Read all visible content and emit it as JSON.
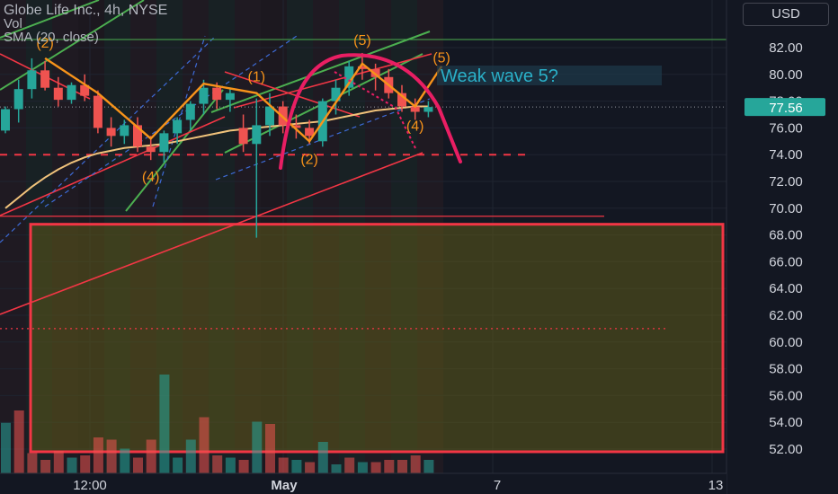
{
  "header": {
    "title": "Globe Life Inc., 4h, NYSE",
    "vol_label": "Vol",
    "sma_label": "SMA (20, close)"
  },
  "currency_button": "USD",
  "colors": {
    "background": "#131722",
    "up": "#26a69a",
    "down": "#ef5350",
    "wave_line": "#f7931a",
    "wave_label": "#f7931a",
    "sma": "#f0c27b",
    "channel_green": "#4caf50",
    "channel_red": "#f23645",
    "projection": "#e91e63",
    "box_fill": "#5d5a1a",
    "last_price_bg": "#26a69a"
  },
  "chart_data": {
    "type": "candlestick",
    "symbol": "Globe Life Inc.",
    "interval": "4h",
    "exchange": "NYSE",
    "y_axis": {
      "ticks": [
        "82.00",
        "80.00",
        "78.00",
        "76.00",
        "74.00",
        "72.00",
        "70.00",
        "68.00",
        "66.00",
        "64.00",
        "62.00",
        "60.00",
        "58.00",
        "56.00",
        "54.00",
        "52.00"
      ],
      "ylim": [
        50.7,
        83.6
      ]
    },
    "x_axis": {
      "ticks": [
        "12:00",
        "May",
        "7",
        "13"
      ]
    },
    "last_price": "77.56",
    "candles": [
      {
        "o": 75.8,
        "h": 77.6,
        "l": 75.6,
        "c": 77.4
      },
      {
        "o": 77.4,
        "h": 79.6,
        "l": 76.4,
        "c": 78.9
      },
      {
        "o": 78.9,
        "h": 81.2,
        "l": 78.2,
        "c": 80.3
      },
      {
        "o": 80.3,
        "h": 81.0,
        "l": 78.8,
        "c": 79.0
      },
      {
        "o": 79.0,
        "h": 79.8,
        "l": 77.6,
        "c": 78.1
      },
      {
        "o": 78.1,
        "h": 79.4,
        "l": 77.8,
        "c": 79.2
      },
      {
        "o": 79.2,
        "h": 80.0,
        "l": 78.0,
        "c": 78.4
      },
      {
        "o": 78.4,
        "h": 78.8,
        "l": 75.6,
        "c": 76.0
      },
      {
        "o": 76.0,
        "h": 76.8,
        "l": 74.6,
        "c": 75.4
      },
      {
        "o": 75.4,
        "h": 76.6,
        "l": 74.8,
        "c": 76.2
      },
      {
        "o": 76.2,
        "h": 76.8,
        "l": 74.2,
        "c": 74.6
      },
      {
        "o": 74.6,
        "h": 75.4,
        "l": 73.6,
        "c": 74.2
      },
      {
        "o": 74.2,
        "h": 75.8,
        "l": 73.4,
        "c": 75.6
      },
      {
        "o": 75.6,
        "h": 76.8,
        "l": 74.8,
        "c": 76.6
      },
      {
        "o": 76.6,
        "h": 78.0,
        "l": 75.8,
        "c": 77.8
      },
      {
        "o": 77.8,
        "h": 79.6,
        "l": 77.0,
        "c": 79.0
      },
      {
        "o": 79.0,
        "h": 79.4,
        "l": 77.4,
        "c": 78.1
      },
      {
        "o": 78.1,
        "h": 79.0,
        "l": 77.2,
        "c": 78.6
      },
      {
        "o": 76.0,
        "h": 77.0,
        "l": 74.2,
        "c": 74.8
      },
      {
        "o": 74.8,
        "h": 78.2,
        "l": 67.8,
        "c": 76.2
      },
      {
        "o": 76.2,
        "h": 78.6,
        "l": 75.4,
        "c": 77.6
      },
      {
        "o": 77.6,
        "h": 78.0,
        "l": 75.6,
        "c": 76.2
      },
      {
        "o": 76.2,
        "h": 77.0,
        "l": 75.2,
        "c": 76.0
      },
      {
        "o": 76.0,
        "h": 76.6,
        "l": 74.8,
        "c": 75.4
      },
      {
        "o": 75.0,
        "h": 78.2,
        "l": 74.6,
        "c": 78.0
      },
      {
        "o": 78.0,
        "h": 79.6,
        "l": 77.0,
        "c": 79.0
      },
      {
        "o": 79.0,
        "h": 81.0,
        "l": 78.4,
        "c": 80.6
      },
      {
        "o": 80.6,
        "h": 81.6,
        "l": 79.6,
        "c": 80.4
      },
      {
        "o": 80.4,
        "h": 80.8,
        "l": 78.8,
        "c": 79.8
      },
      {
        "o": 79.8,
        "h": 80.4,
        "l": 78.2,
        "c": 78.6
      },
      {
        "o": 78.6,
        "h": 79.2,
        "l": 77.2,
        "c": 77.6
      },
      {
        "o": 77.6,
        "h": 78.2,
        "l": 76.6,
        "c": 77.2
      },
      {
        "o": 77.2,
        "h": 78.0,
        "l": 76.8,
        "c": 77.56
      }
    ],
    "volume": [
      {
        "v": 0.45,
        "up": true
      },
      {
        "v": 0.56,
        "up": false
      },
      {
        "v": 0.18,
        "up": false
      },
      {
        "v": 0.12,
        "up": false
      },
      {
        "v": 0.2,
        "up": false
      },
      {
        "v": 0.14,
        "up": true
      },
      {
        "v": 0.16,
        "up": false
      },
      {
        "v": 0.32,
        "up": false
      },
      {
        "v": 0.3,
        "up": false
      },
      {
        "v": 0.22,
        "up": true
      },
      {
        "v": 0.14,
        "up": false
      },
      {
        "v": 0.3,
        "up": false
      },
      {
        "v": 0.88,
        "up": true
      },
      {
        "v": 0.14,
        "up": true
      },
      {
        "v": 0.3,
        "up": true
      },
      {
        "v": 0.5,
        "up": false
      },
      {
        "v": 0.16,
        "up": false
      },
      {
        "v": 0.14,
        "up": true
      },
      {
        "v": 0.12,
        "up": false
      },
      {
        "v": 0.46,
        "up": true
      },
      {
        "v": 0.44,
        "up": false
      },
      {
        "v": 0.14,
        "up": false
      },
      {
        "v": 0.12,
        "up": true
      },
      {
        "v": 0.1,
        "up": false
      },
      {
        "v": 0.28,
        "up": true
      },
      {
        "v": 0.08,
        "up": true
      },
      {
        "v": 0.14,
        "up": false
      },
      {
        "v": 0.1,
        "up": true
      },
      {
        "v": 0.1,
        "up": false
      },
      {
        "v": 0.12,
        "up": false
      },
      {
        "v": 0.12,
        "up": false
      },
      {
        "v": 0.16,
        "up": false
      },
      {
        "v": 0.12,
        "up": true
      }
    ],
    "sma_20": [
      70.0,
      70.8,
      71.6,
      72.3,
      72.9,
      73.4,
      73.8,
      74.1,
      74.3,
      74.5,
      74.6,
      74.7,
      74.8,
      75.0,
      75.2,
      75.4,
      75.6,
      75.8,
      75.9,
      76.0,
      76.1,
      76.2,
      76.3,
      76.4,
      76.5,
      76.7,
      76.9,
      77.1,
      77.3,
      77.4,
      77.5,
      77.6,
      77.6
    ],
    "wave_labels": [
      {
        "text": "(2)",
        "at": {
          "i": 3,
          "y": 82.0
        }
      },
      {
        "text": "(4)",
        "at": {
          "i": 11,
          "y": 72.0
        }
      },
      {
        "text": "(1)",
        "at": {
          "i": 19,
          "y": 79.5
        }
      },
      {
        "text": "(2)",
        "at": {
          "i": 23,
          "y": 73.3
        }
      },
      {
        "text": "(5)",
        "at": {
          "i": 27,
          "y": 82.2
        }
      },
      {
        "text": "(4)",
        "at": {
          "i": 31,
          "y": 75.8
        }
      },
      {
        "text": "(5)",
        "at": {
          "i": 33,
          "y": 80.9
        }
      }
    ],
    "annotation": "Weak wave 5?",
    "support_level": 74.0,
    "dotted_level": 61.0,
    "horizontal_levels": [
      82.6,
      69.4
    ],
    "target_zone": {
      "top": 68.8,
      "bottom": 51.8
    }
  }
}
